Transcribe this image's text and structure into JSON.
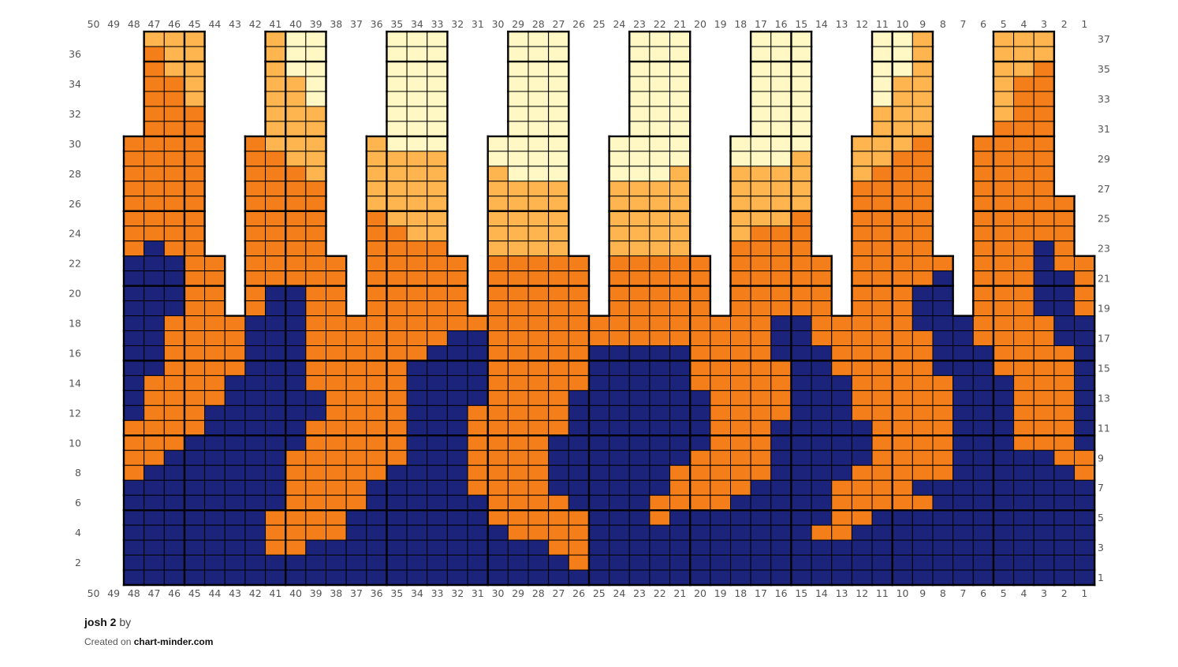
{
  "footer": {
    "title": "josh 2",
    "by": "by",
    "created_on": "Created on",
    "site": "chart-minder.com"
  },
  "chart_data": {
    "type": "heatmap",
    "title": "josh 2",
    "column_labels": [
      50,
      49,
      48,
      47,
      46,
      45,
      44,
      43,
      42,
      41,
      40,
      39,
      38,
      37,
      36,
      35,
      34,
      33,
      32,
      31,
      30,
      29,
      28,
      27,
      26,
      25,
      24,
      23,
      22,
      21,
      20,
      19,
      18,
      17,
      16,
      15,
      14,
      13,
      12,
      11,
      10,
      9,
      8,
      7,
      6,
      5,
      4,
      3,
      2,
      1
    ],
    "left_row_labels": [
      36,
      34,
      32,
      30,
      28,
      26,
      24,
      22,
      20,
      18,
      16,
      14,
      12,
      10,
      8,
      6,
      4,
      2
    ],
    "right_row_labels": [
      37,
      35,
      33,
      31,
      29,
      27,
      25,
      23,
      21,
      19,
      17,
      15,
      13,
      11,
      9,
      7,
      5,
      3,
      1
    ],
    "columns_in_grid_from": 48,
    "rows_total": 37,
    "colors": {
      "N": "#1b237a",
      "O": "#f47f1a",
      "L": "#feb550",
      "Y": "#fff8c4"
    },
    "color_names": {
      "N": "navy",
      "O": "orange",
      "L": "light orange",
      "Y": "pale yellow",
      ".": "no stitch"
    },
    "rows_top_to_bottom_note": "row 37 first; each string lists columns 48 to 1",
    "rows": [
      ".LLL...LYY...YYY...YYY...YYY...YYY...YYL...LLL..",
      ".OLL...LYY...YYY...YYY...YYY...YYY...YYL...LLL..",
      ".OLL...LYY...YYY...YYY...YYY...YYY...YYL...LLO..",
      ".OOL...LLY...YYY...YYY...YYY...YYY...YLL...LOO..",
      ".OOL...LLY...YYY...YYY...YYY...YYY...YLL...LOO..",
      ".OOO...LLL...YYY...YYY...YYY...YYY...LLL...LOO..",
      ".OOO...LLL...YYY...YYY...YYY...YYY...LLL...OOO..",
      "OOOO..OLLL..LYYY..YYYY..YYYY..YYYY..LLLO..OOOO..",
      "OOOO..OOLL..LLLL..YYYY..YYYY..YYYL..LLOO..OOOO..",
      "OOOO..OOOL..LLLL..LYYY..YYYL..LLLL..LOOO..OOOO..",
      "OOOO..OOOO..LLLL..LLLL..LLLL..LLLL..OOOO..OOOO..",
      "OOOO..OOOO..LLLL..LLLL..LLLL..LLLL..OOOO..OOOOO.",
      "OOOO..OOOO..OLLL..LLLL..LLLL..LLLO..OOOO..OOOOO.",
      "OOOO..OOOO..OOLL..LLLL..LLLL..LOOO..OOOO..OOOOO.",
      "ONOO..OOOO..OOOO..LLLL..LLLL..OOOO..OOOO..OOONO.",
      "NNNOO.OOOOO.OOOOO.OOOOO.OOOOO.OOOOO.OOOOO.OOONOO",
      "NNNOO.OOOOO.OOOOO.OOOOO.OOOOO.OOOOO.OOOON.OOONNO",
      "NNNOO.ONNOO.OOOOO.OOOOO.OOOOO.OOOOO.OOONN.OOONNO",
      "NNNOO.ONNOO.OOOOO.OOOOO.OOOOO.OOOOO.OOONN.OOONNO",
      "NNOOOONNNOOOOOOOOOOOOOOOOOOOOOOONNOOOOONNNOOOONN",
      "NNOOOONNNOOOOOOONNOOOOOOOOOOOOOONNOOOOOONNOOOONN",
      "NNOOOONNNOOOOOONNNOOOOONNNNNOOOONNNOOOOONNNOOOON",
      "NNOOOONNNOOOOONNNNOOOOONNNNNOOOOONNOOOOONNNOOOON",
      "NOOOONNNNOOOOONNNNOOOOONNNNNOOOOONNNOOOOONNNOOON",
      "NOOOONNNNNOOOONNNNOOOONNNNNNNOOOONNNOOOOONNNOOON",
      "NOOONNNNNNOOOONNNOOOOONNNNNNNOOOONNNOOOOONNNOOON",
      "OOOONNNNNOOOOONNNOOOOONNNNNNNOOONNNNNOOOONNNOOON",
      "OOONNNNNNOOOOONNNOOOONNNNNNNNOOONNNNNOOOONNNOOON",
      "OONNNNNNOOOOOONNNOOOONNNNNNNOOOONNNNNOOOONNNNNOO",
      "ONNNNNNNOOOOONNNNOOOONNNNNNOOOOONNNNOOOOONNNNNNO",
      "NNNNNNNNOOOONNNNNOOOONNNNNNOOOONNNNOOOONNNNNNNNN",
      "NNNNNNNNOOOONNNNNNOOOONNNNOOOONNNNNOOOOONNNNNNNN",
      "NNNNNNNOOOONNNNNNNOOOOONNNONNNNNNNNOONNNNNNNNNNN",
      "NNNNNNNOOOONNNNNNNNOOOONNNNNNNNNNNOONNNNNNNNNNNN",
      "NNNNNNNOONNNNNNNNNNNNOONNNNNNNNNNNNNNNNNNNNNNNNN",
      "NNNNNNNNNNNNNNNNNNNNNNONNNNNNNNNNNNNNNNNNNNNNNNN",
      "NNNNNNNNNNNNNNNNNNNNNNNNNNNNNNNNNNNNNNNNNNNNNNNN"
    ]
  }
}
